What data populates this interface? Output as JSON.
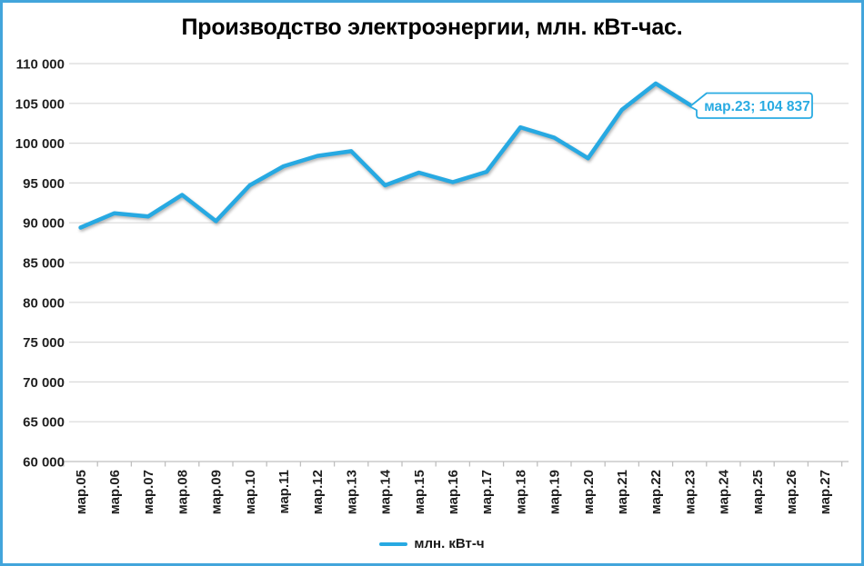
{
  "frame": {
    "border_color": "#42A5DB",
    "background_color": "#FFFFFF"
  },
  "chart_data": {
    "type": "line",
    "title": "Производство электроэнергии, млн. кВт-час.",
    "categories": [
      "мар.05",
      "мар.06",
      "мар.07",
      "мар.08",
      "мар.09",
      "мар.10",
      "мар.11",
      "мар.12",
      "мар.13",
      "мар.14",
      "мар.15",
      "мар.16",
      "мар.17",
      "мар.18",
      "мар.19",
      "мар.20",
      "мар.21",
      "мар.22",
      "мар.23",
      "мар.24",
      "мар.25",
      "мар.26",
      "мар.27"
    ],
    "series": [
      {
        "name": "млн. кВт-ч",
        "color": "#27A9E2",
        "values": [
          89400,
          91200,
          90800,
          93500,
          90200,
          94700,
          97100,
          98400,
          99000,
          94700,
          96300,
          95100,
          96400,
          102000,
          100700,
          98100,
          104200,
          107500,
          104837,
          null,
          null,
          null,
          null
        ]
      }
    ],
    "ylim": [
      60000,
      110000
    ],
    "ytick_step": 5000,
    "ytick_labels": [
      "110 000",
      "105 000",
      "100 000",
      "95 000",
      "90 000",
      "85 000",
      "80 000",
      "75 000",
      "70 000",
      "65 000",
      "60 000"
    ],
    "grid": true,
    "gridline_color": "#D9D9D9",
    "axis_color": "#BFBFBF",
    "legend_position": "bottom",
    "point_label": {
      "text": "мар.23; 104 837",
      "category": "мар.23",
      "value": 104837,
      "text_color": "#29ABE2",
      "border_color": "#29ABE2",
      "fill": "#FFFFFF"
    }
  }
}
